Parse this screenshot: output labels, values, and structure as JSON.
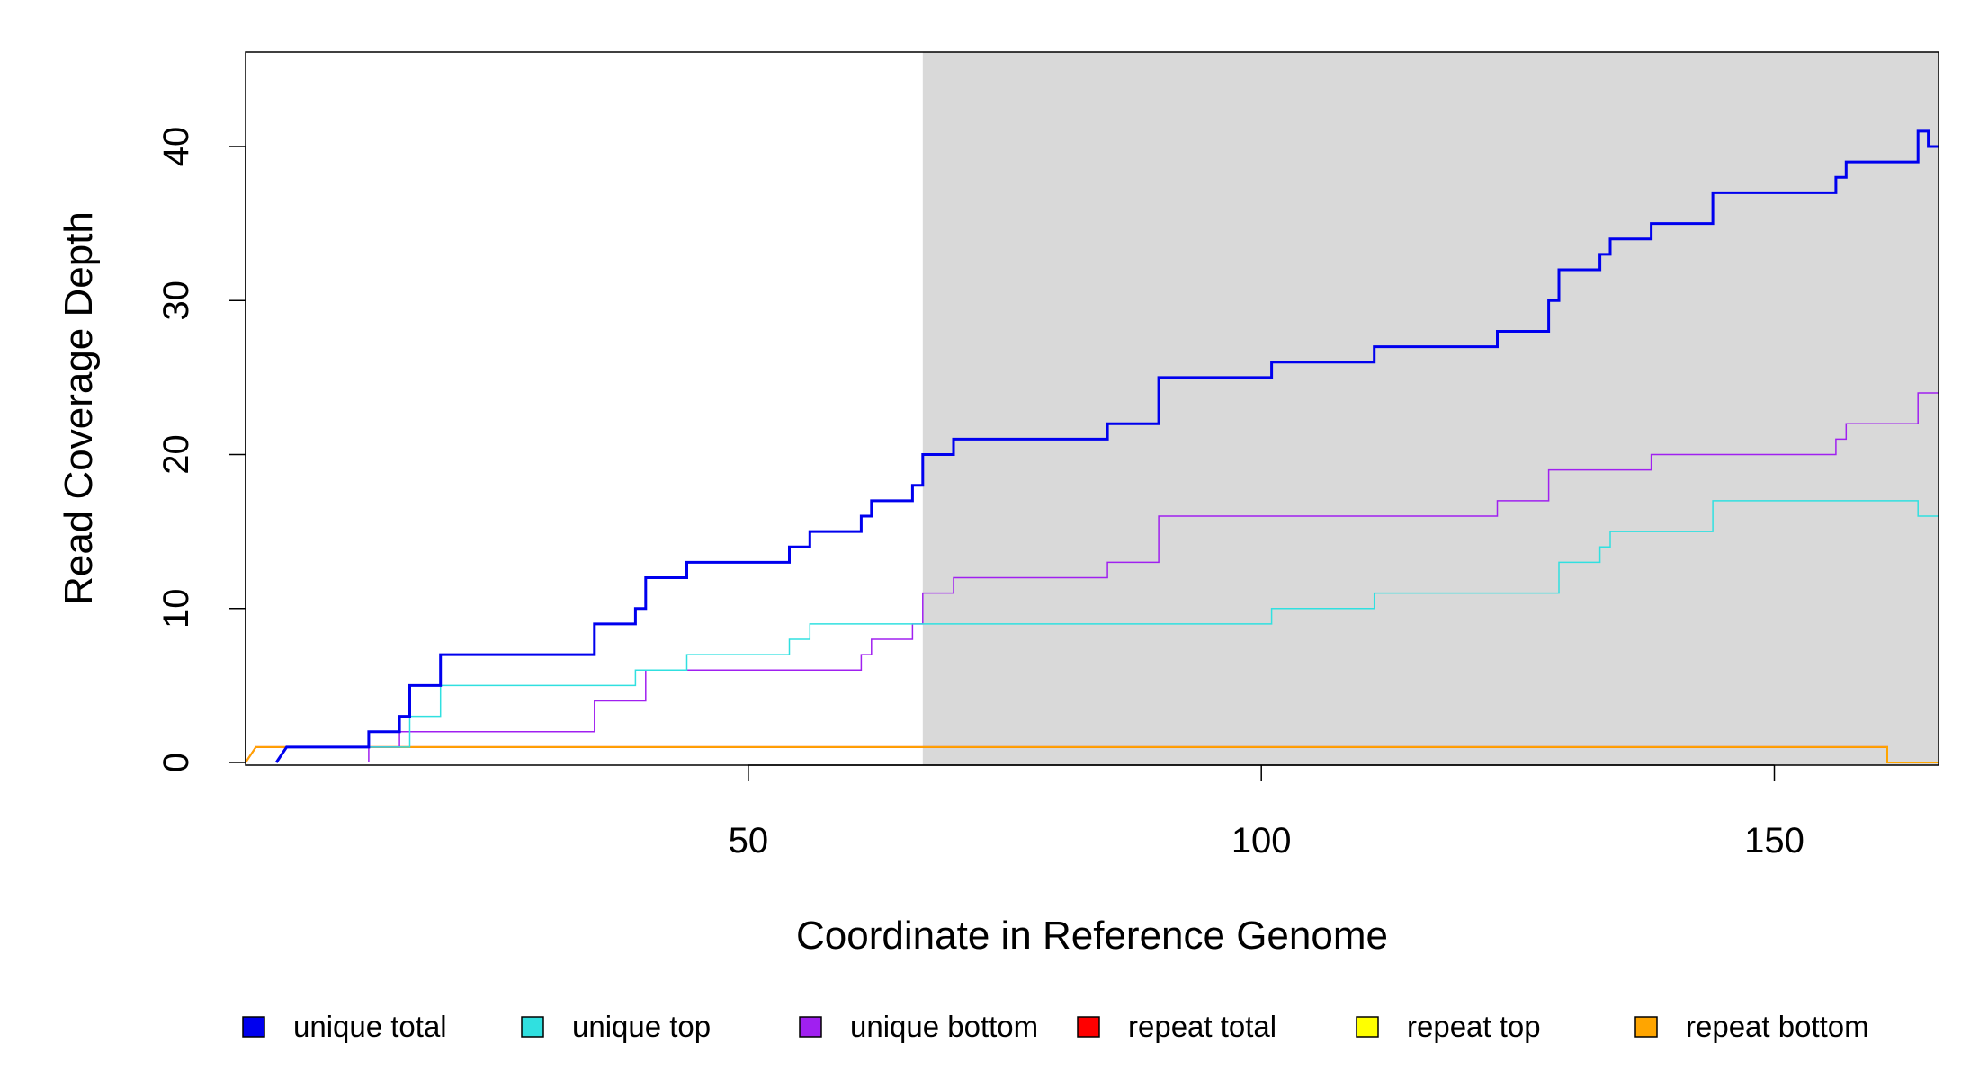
{
  "chart_data": {
    "type": "line",
    "step": true,
    "xlabel": "Coordinate in Reference Genome",
    "ylabel": "Read Coverage Depth",
    "xlim": [
      1,
      166
    ],
    "ylim": [
      0,
      45
    ],
    "x_ticks": [
      50,
      100,
      150
    ],
    "y_ticks": [
      0,
      10,
      20,
      30,
      40
    ],
    "x_tick_labels": [
      "50",
      "100",
      "150"
    ],
    "y_tick_labels": [
      "0",
      "10",
      "20",
      "30",
      "40"
    ],
    "highlight_region": {
      "x_start": 67,
      "x_end": 166,
      "color": "#d9d9d9"
    },
    "legend_position": "bottom",
    "series": [
      {
        "name": "unique total",
        "color": "#0000ee",
        "line_width": 3,
        "points": [
          [
            4,
            0
          ],
          [
            5,
            1
          ],
          [
            13,
            1
          ],
          [
            13,
            2
          ],
          [
            16,
            2
          ],
          [
            16,
            3
          ],
          [
            17,
            3
          ],
          [
            17,
            5
          ],
          [
            20,
            5
          ],
          [
            20,
            7
          ],
          [
            35,
            7
          ],
          [
            35,
            9
          ],
          [
            39,
            9
          ],
          [
            39,
            10
          ],
          [
            40,
            10
          ],
          [
            40,
            12
          ],
          [
            44,
            12
          ],
          [
            44,
            13
          ],
          [
            54,
            13
          ],
          [
            54,
            14
          ],
          [
            56,
            14
          ],
          [
            56,
            15
          ],
          [
            61,
            15
          ],
          [
            61,
            16
          ],
          [
            62,
            16
          ],
          [
            62,
            17
          ],
          [
            66,
            17
          ],
          [
            66,
            18
          ],
          [
            67,
            18
          ],
          [
            67,
            20
          ],
          [
            70,
            20
          ],
          [
            70,
            21
          ],
          [
            85,
            21
          ],
          [
            85,
            22
          ],
          [
            90,
            22
          ],
          [
            90,
            25
          ],
          [
            101,
            25
          ],
          [
            101,
            26
          ],
          [
            111,
            26
          ],
          [
            111,
            27
          ],
          [
            123,
            27
          ],
          [
            123,
            28
          ],
          [
            128,
            28
          ],
          [
            128,
            30
          ],
          [
            129,
            30
          ],
          [
            129,
            32
          ],
          [
            133,
            32
          ],
          [
            133,
            33
          ],
          [
            134,
            33
          ],
          [
            134,
            34
          ],
          [
            138,
            34
          ],
          [
            138,
            35
          ],
          [
            144,
            35
          ],
          [
            144,
            37
          ],
          [
            156,
            37
          ],
          [
            156,
            38
          ],
          [
            157,
            38
          ],
          [
            157,
            39
          ],
          [
            164,
            39
          ],
          [
            164,
            41
          ],
          [
            165,
            41
          ],
          [
            165,
            40
          ],
          [
            166,
            40
          ]
        ]
      },
      {
        "name": "unique top",
        "color": "#30e0e0",
        "line_width": 1.5,
        "points": [
          [
            4,
            0
          ],
          [
            5,
            1
          ],
          [
            17,
            1
          ],
          [
            17,
            3
          ],
          [
            20,
            3
          ],
          [
            20,
            5
          ],
          [
            39,
            5
          ],
          [
            39,
            6
          ],
          [
            44,
            6
          ],
          [
            44,
            7
          ],
          [
            54,
            7
          ],
          [
            54,
            8
          ],
          [
            56,
            8
          ],
          [
            56,
            9
          ],
          [
            101,
            9
          ],
          [
            101,
            10
          ],
          [
            111,
            10
          ],
          [
            111,
            11
          ],
          [
            129,
            11
          ],
          [
            129,
            13
          ],
          [
            133,
            13
          ],
          [
            133,
            14
          ],
          [
            134,
            14
          ],
          [
            134,
            15
          ],
          [
            144,
            15
          ],
          [
            144,
            17
          ],
          [
            164,
            17
          ],
          [
            164,
            16
          ],
          [
            166,
            16
          ]
        ]
      },
      {
        "name": "unique bottom",
        "color": "#a020f0",
        "line_width": 1.5,
        "points": [
          [
            13,
            0
          ],
          [
            13,
            1
          ],
          [
            16,
            1
          ],
          [
            16,
            2
          ],
          [
            35,
            2
          ],
          [
            35,
            4
          ],
          [
            40,
            4
          ],
          [
            40,
            6
          ],
          [
            61,
            6
          ],
          [
            61,
            7
          ],
          [
            62,
            7
          ],
          [
            62,
            8
          ],
          [
            66,
            8
          ],
          [
            66,
            9
          ],
          [
            67,
            9
          ],
          [
            67,
            11
          ],
          [
            70,
            11
          ],
          [
            70,
            12
          ],
          [
            85,
            12
          ],
          [
            85,
            13
          ],
          [
            90,
            13
          ],
          [
            90,
            16
          ],
          [
            123,
            16
          ],
          [
            123,
            17
          ],
          [
            128,
            17
          ],
          [
            128,
            19
          ],
          [
            138,
            19
          ],
          [
            138,
            20
          ],
          [
            156,
            20
          ],
          [
            156,
            21
          ],
          [
            157,
            21
          ],
          [
            157,
            22
          ],
          [
            164,
            22
          ],
          [
            164,
            24
          ],
          [
            166,
            24
          ]
        ]
      },
      {
        "name": "repeat total",
        "color": "#ff0000",
        "line_width": 2,
        "points": [
          [
            1,
            0
          ],
          [
            2,
            1
          ],
          [
            161,
            1
          ],
          [
            161,
            0
          ],
          [
            166,
            0
          ]
        ]
      },
      {
        "name": "repeat top",
        "color": "#ffff00",
        "line_width": 1.5,
        "points": []
      },
      {
        "name": "repeat bottom",
        "color": "#ffa500",
        "line_width": 2,
        "points": [
          [
            1,
            0
          ],
          [
            2,
            1
          ],
          [
            161,
            1
          ],
          [
            161,
            0
          ],
          [
            166,
            0
          ]
        ]
      }
    ]
  }
}
